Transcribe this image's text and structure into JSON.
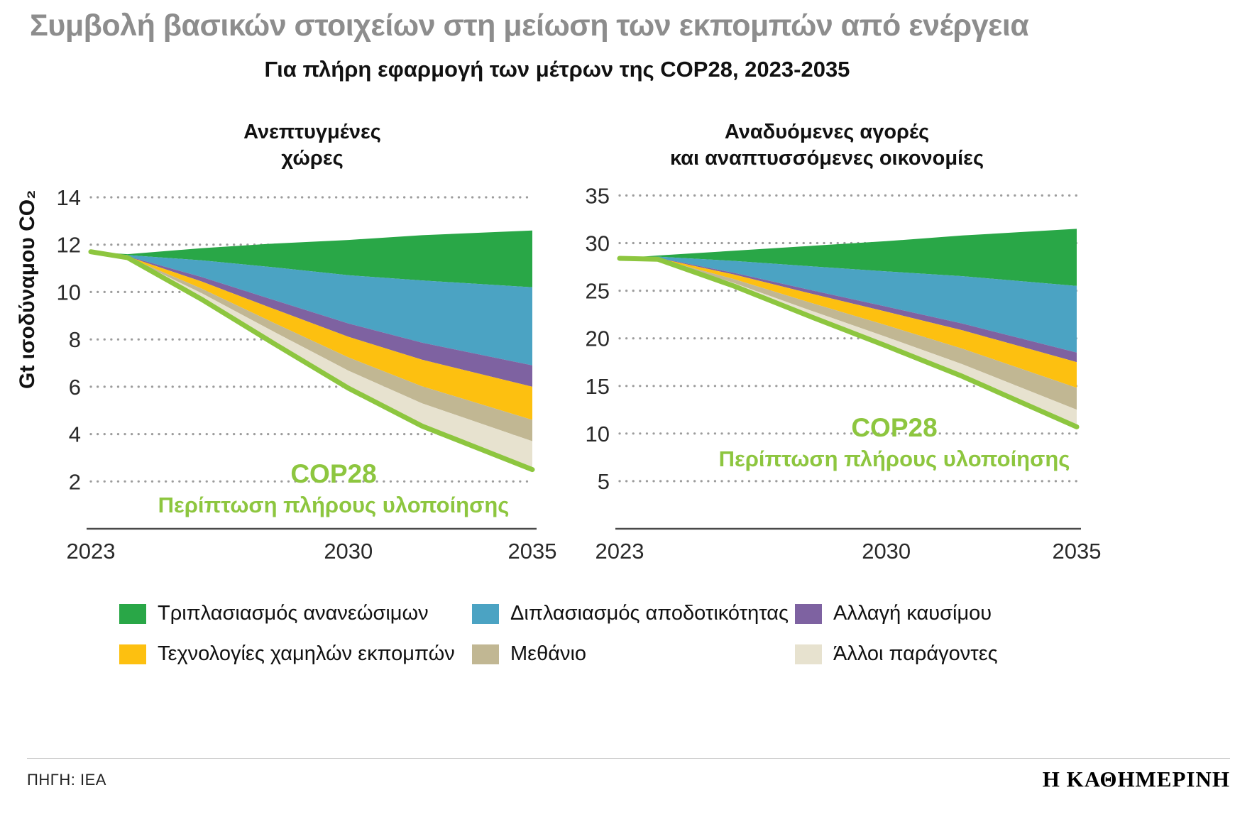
{
  "title": "Συμβολή βασικών στοιχείων στη μείωση των εκπομπών από ενέργεια",
  "subtitle": "Για πλήρη εφαρμογή των μέτρων της COP28, 2023-2035",
  "colors": {
    "cop28_green": "#8dc63f",
    "grid": "#9c9c9c",
    "title_grey": "#8d8d8d",
    "axis": "#4a4a4a"
  },
  "annotation": {
    "line1": "COP28",
    "line2": "Περίπτωση πλήρους υλοποίησης"
  },
  "legend": {
    "items": [
      {
        "label": "Τριπλασιασμός ανανεώσιμων",
        "color": "#29a747"
      },
      {
        "label": "Διπλασιασμός αποδοτικότητας",
        "color": "#4ba3c3"
      },
      {
        "label": "Αλλαγή καυσίμου",
        "color": "#7e62a1"
      },
      {
        "label": "Τεχνολογίες χαμηλών εκπομπών",
        "color": "#fdc010"
      },
      {
        "label": "Μεθάνιο",
        "color": "#c1b793"
      },
      {
        "label": "Άλλοι παράγοντες",
        "color": "#e7e2cf"
      }
    ]
  },
  "footer": {
    "source": "ΠΗΓΗ: IEA",
    "brand": "Η ΚΑΘΗΜΕΡΙΝΗ"
  },
  "chart_data": [
    {
      "type": "stacked_area",
      "title_line1": "Ανεπτυγμένες",
      "title_line2": "χώρες",
      "ylabel": "Gt ισοδύναμου CO₂",
      "x": [
        2023,
        2024,
        2026,
        2028,
        2030,
        2032,
        2035
      ],
      "x_ticks": [
        2023,
        2030,
        2035
      ],
      "y_ticks": [
        14,
        12,
        10,
        8,
        6,
        4,
        2
      ],
      "ylim": [
        0,
        14.6
      ],
      "baseline_top": [
        11.7,
        11.6,
        11.85,
        12.05,
        12.2,
        12.4,
        12.6
      ],
      "cop28_line": [
        11.7,
        11.45,
        9.7,
        7.8,
        5.94,
        4.34,
        2.5
      ],
      "series": [
        {
          "name": "Τριπλασιασμός ανανεώσιμων",
          "color": "#29a747",
          "values": [
            0,
            0.04,
            0.51,
            1.01,
            1.49,
            1.91,
            2.4
          ]
        },
        {
          "name": "Διπλασιασμός αποδοτικότητας",
          "color": "#4ba3c3",
          "values": [
            0,
            0.05,
            0.7,
            1.39,
            2.04,
            2.63,
            3.3
          ]
        },
        {
          "name": "Αλλαγή καυσίμου",
          "color": "#7e62a1",
          "values": [
            0,
            0.01,
            0.19,
            0.38,
            0.56,
            0.72,
            0.9
          ]
        },
        {
          "name": "Τεχνολογίες χαμηλών εκπομπών",
          "color": "#fdc010",
          "values": [
            0,
            0.02,
            0.3,
            0.59,
            0.87,
            1.12,
            1.4
          ]
        },
        {
          "name": "Μεθάνιο",
          "color": "#c1b793",
          "values": [
            0,
            0.01,
            0.19,
            0.38,
            0.56,
            0.72,
            0.9
          ]
        },
        {
          "name": "Άλλοι παράγοντες",
          "color": "#e7e2cf",
          "values": [
            0,
            0.02,
            0.26,
            0.5,
            0.74,
            0.96,
            1.2
          ]
        }
      ]
    },
    {
      "type": "stacked_area",
      "title_line1": "Αναδυόμενες αγορές",
      "title_line2": "και αναπτυσσόμενες οικονομίες",
      "ylabel": "",
      "x": [
        2023,
        2024,
        2026,
        2028,
        2030,
        2032,
        2035
      ],
      "x_ticks": [
        2023,
        2030,
        2035
      ],
      "y_ticks": [
        35,
        30,
        25,
        20,
        15,
        10,
        5
      ],
      "ylim": [
        0,
        36.3
      ],
      "baseline_top": [
        28.4,
        28.7,
        29.2,
        29.7,
        30.2,
        30.8,
        31.5
      ],
      "cop28_line": [
        28.4,
        28.31,
        25.49,
        22.3,
        19.2,
        16.0,
        10.7
      ],
      "series": [
        {
          "name": "Τριπλασιασμός ανανεώσιμων",
          "color": "#29a747",
          "values": [
            0,
            0.12,
            1.07,
            2.13,
            3.17,
            4.27,
            6.0
          ]
        },
        {
          "name": "Διπλασιασμός αποδοτικότητας",
          "color": "#4ba3c3",
          "values": [
            0,
            0.13,
            1.25,
            2.49,
            3.7,
            4.98,
            7.0
          ]
        },
        {
          "name": "Αλλαγή καυσίμου",
          "color": "#7e62a1",
          "values": [
            0,
            0.02,
            0.18,
            0.36,
            0.53,
            0.71,
            1.0
          ]
        },
        {
          "name": "Τεχνολογίες χαμηλών εκπομπών",
          "color": "#fdc010",
          "values": [
            0,
            0.05,
            0.48,
            0.96,
            1.43,
            1.92,
            2.7
          ]
        },
        {
          "name": "Μεθάνιο",
          "color": "#c1b793",
          "values": [
            0,
            0.04,
            0.41,
            0.82,
            1.22,
            1.64,
            2.3
          ]
        },
        {
          "name": "Άλλοι παράγοντες",
          "color": "#e7e2cf",
          "values": [
            0,
            0.03,
            0.32,
            0.64,
            0.95,
            1.28,
            1.8
          ]
        }
      ]
    }
  ]
}
